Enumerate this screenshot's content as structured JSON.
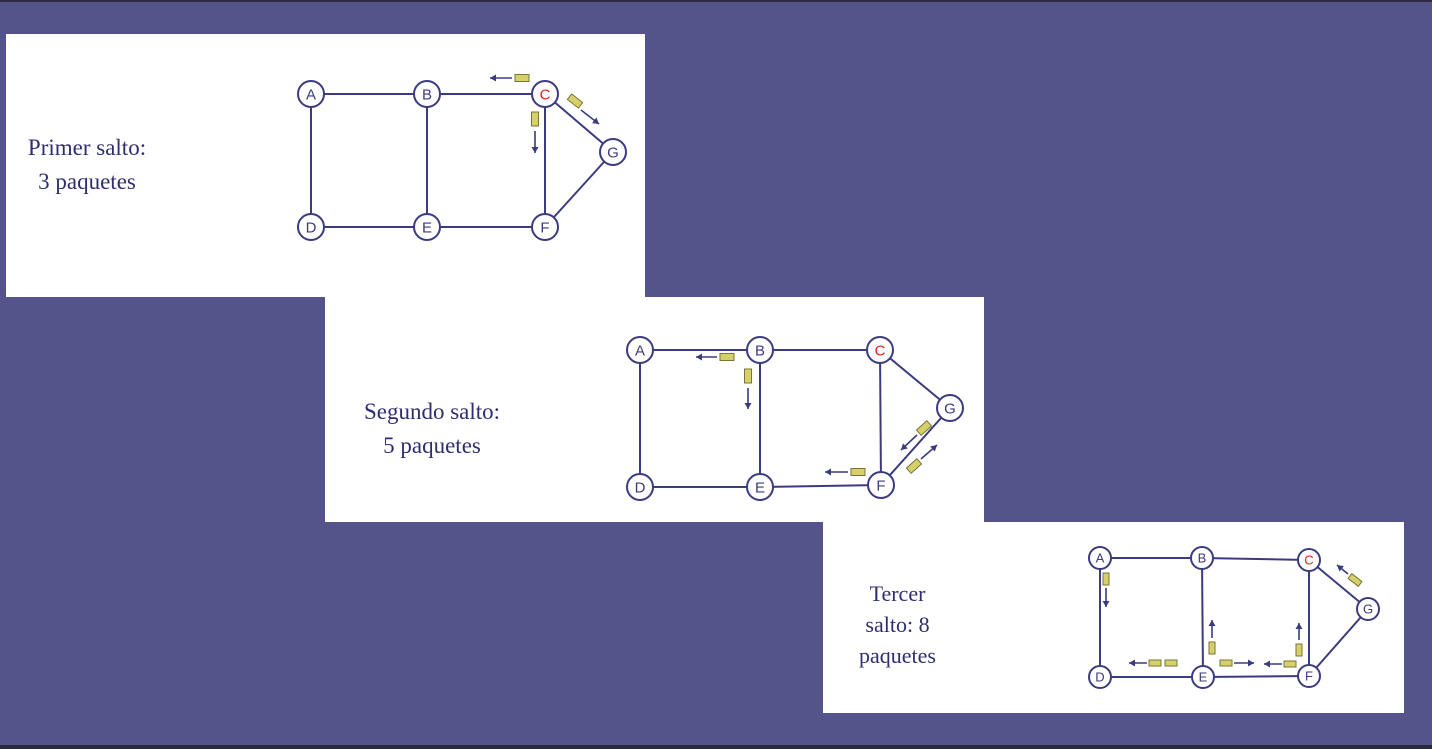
{
  "panels": [
    {
      "caption": [
        "Primer salto:",
        "3 paquetes"
      ],
      "nodes": [
        "A",
        "B",
        "C",
        "D",
        "E",
        "F",
        "G"
      ],
      "highlight_node": "C"
    },
    {
      "caption": [
        "Segundo salto:",
        "5 paquetes"
      ],
      "nodes": [
        "A",
        "B",
        "C",
        "D",
        "E",
        "F",
        "G"
      ],
      "highlight_node": "C"
    },
    {
      "caption": [
        "Tercer",
        "salto: 8",
        "paquetes"
      ],
      "nodes": [
        "A",
        "B",
        "C",
        "D",
        "E",
        "F",
        "G"
      ],
      "highlight_node": "C"
    }
  ],
  "colors": {
    "background": "#54548a",
    "line": "#3b3b80",
    "highlight": "#e02020",
    "packet_fill": "#d6cf6a",
    "packet_stroke": "#77773a"
  }
}
